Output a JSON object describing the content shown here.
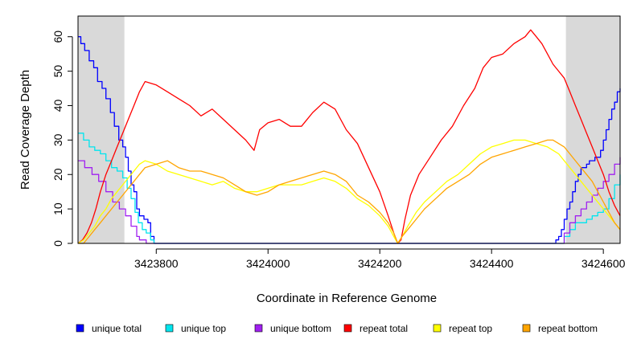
{
  "chart_data": {
    "type": "line",
    "xlabel": "Coordinate in Reference Genome",
    "ylabel": "Read Coverage Depth",
    "xlim": [
      3423660,
      3424630
    ],
    "ylim": [
      0,
      66
    ],
    "xticks": [
      3423800,
      3424000,
      3424200,
      3424400,
      3424600
    ],
    "xtick_labels": [
      "3423800",
      "3424000",
      "3424200",
      "3424400",
      "3424600"
    ],
    "yticks": [
      0,
      10,
      20,
      30,
      40,
      50,
      60
    ],
    "ytick_labels": [
      "0",
      "10",
      "20",
      "30",
      "40",
      "50",
      "60"
    ],
    "shaded_regions": [
      [
        3423660,
        3423743
      ],
      [
        3424533,
        3424630
      ]
    ],
    "shade_color": "#d9d9d9",
    "grid": false,
    "legend_position": "bottom",
    "series": [
      {
        "name": "unique total",
        "color": "#0000ff",
        "step": true,
        "x": [
          3423660,
          3423665,
          3423672,
          3423680,
          3423688,
          3423695,
          3423703,
          3423710,
          3423718,
          3423725,
          3423733,
          3423740,
          3423745,
          3423750,
          3423755,
          3423760,
          3423765,
          3423770,
          3423778,
          3423785,
          3423790,
          3423796,
          3424510,
          3424515,
          3424520,
          3424525,
          3424530,
          3424535,
          3424540,
          3424545,
          3424550,
          3424555,
          3424560,
          3424565,
          3424570,
          3424575,
          3424580,
          3424585,
          3424590,
          3424595,
          3424600,
          3424605,
          3424610,
          3424615,
          3424620,
          3424625,
          3424630
        ],
        "y": [
          60,
          58,
          56,
          53,
          51,
          47,
          45,
          42,
          38,
          34,
          30,
          28,
          25,
          21,
          17,
          15,
          10,
          8,
          7,
          6,
          2,
          0,
          0,
          1,
          2,
          4,
          7,
          10,
          12,
          15,
          18,
          20,
          22,
          22,
          23,
          24,
          24,
          25,
          25,
          27,
          30,
          33,
          36,
          39,
          41,
          44,
          45
        ]
      },
      {
        "name": "unique top",
        "color": "#00e5ee",
        "step": true,
        "x": [
          3423660,
          3423670,
          3423680,
          3423690,
          3423700,
          3423710,
          3423720,
          3423730,
          3423740,
          3423748,
          3423755,
          3423762,
          3423768,
          3423775,
          3423782,
          3423790,
          3423796,
          3424520,
          3424530,
          3424540,
          3424550,
          3424560,
          3424570,
          3424580,
          3424590,
          3424600,
          3424610,
          3424620,
          3424630
        ],
        "y": [
          32,
          30,
          28,
          27,
          26,
          24,
          22,
          21,
          19,
          16,
          13,
          9,
          6,
          4,
          3,
          1,
          0,
          0,
          2,
          4,
          6,
          6,
          7,
          8,
          9,
          10,
          13,
          17,
          20
        ]
      },
      {
        "name": "unique bottom",
        "color": "#a020f0",
        "step": true,
        "x": [
          3423660,
          3423672,
          3423685,
          3423697,
          3423710,
          3423722,
          3423734,
          3423745,
          3423755,
          3423765,
          3423770,
          3423776,
          3423782,
          3424520,
          3424530,
          3424540,
          3424550,
          3424560,
          3424570,
          3424580,
          3424590,
          3424600,
          3424610,
          3424620,
          3424630
        ],
        "y": [
          24,
          22,
          20,
          18,
          15,
          12,
          10,
          8,
          5,
          2,
          1,
          1,
          0,
          0,
          3,
          6,
          8,
          10,
          12,
          14,
          16,
          18,
          20,
          23,
          25
        ]
      },
      {
        "name": "repeat total",
        "color": "#ff0000",
        "step": false,
        "x": [
          3423660,
          3423668,
          3423676,
          3423684,
          3423692,
          3423700,
          3423710,
          3423720,
          3423730,
          3423740,
          3423750,
          3423760,
          3423770,
          3423780,
          3423800,
          3423820,
          3423840,
          3423860,
          3423880,
          3423900,
          3423920,
          3423940,
          3423960,
          3423975,
          3423985,
          3424000,
          3424020,
          3424040,
          3424060,
          3424080,
          3424100,
          3424120,
          3424140,
          3424160,
          3424180,
          3424200,
          3424215,
          3424225,
          3424232,
          3424238,
          3424245,
          3424255,
          3424270,
          3424290,
          3424310,
          3424330,
          3424350,
          3424370,
          3424385,
          3424400,
          3424420,
          3424440,
          3424460,
          3424470,
          3424480,
          3424490,
          3424500,
          3424510,
          3424520,
          3424530,
          3424540,
          3424550,
          3424560,
          3424570,
          3424580,
          3424590,
          3424600,
          3424610,
          3424620,
          3424630
        ],
        "y": [
          0,
          1,
          3,
          6,
          10,
          15,
          20,
          24,
          28,
          32,
          36,
          40,
          44,
          47,
          46,
          44,
          42,
          40,
          37,
          39,
          36,
          33,
          30,
          27,
          33,
          35,
          36,
          34,
          34,
          38,
          41,
          39,
          33,
          29,
          22,
          15,
          8,
          3,
          0,
          1,
          7,
          14,
          20,
          25,
          30,
          34,
          40,
          45,
          51,
          54,
          55,
          58,
          60,
          62,
          60,
          58,
          55,
          52,
          50,
          48,
          44,
          40,
          36,
          32,
          28,
          24,
          20,
          15,
          11,
          8
        ]
      },
      {
        "name": "repeat top",
        "color": "#ffff00",
        "step": false,
        "x": [
          3423660,
          3423670,
          3423680,
          3423690,
          3423700,
          3423710,
          3423720,
          3423730,
          3423740,
          3423750,
          3423760,
          3423770,
          3423780,
          3423800,
          3423820,
          3423840,
          3423860,
          3423880,
          3423900,
          3423920,
          3423940,
          3423960,
          3423980,
          3424000,
          3424020,
          3424040,
          3424060,
          3424080,
          3424100,
          3424120,
          3424140,
          3424160,
          3424180,
          3424200,
          3424215,
          3424225,
          3424232,
          3424240,
          3424250,
          3424265,
          3424280,
          3424300,
          3424320,
          3424340,
          3424360,
          3424380,
          3424400,
          3424420,
          3424440,
          3424460,
          3424480,
          3424500,
          3424510,
          3424520,
          3424530,
          3424540,
          3424550,
          3424560,
          3424570,
          3424580,
          3424590,
          3424600,
          3424610,
          3424620,
          3424630
        ],
        "y": [
          0,
          1,
          3,
          5,
          8,
          10,
          13,
          15,
          17,
          19,
          21,
          23,
          24,
          23,
          21,
          20,
          19,
          18,
          17,
          18,
          16,
          15,
          15,
          16,
          17,
          17,
          17,
          18,
          19,
          18,
          16,
          13,
          11,
          8,
          5,
          2,
          0,
          2,
          5,
          9,
          12,
          15,
          18,
          20,
          23,
          26,
          28,
          29,
          30,
          30,
          29,
          28,
          27,
          26,
          24,
          22,
          20,
          18,
          16,
          14,
          12,
          10,
          8,
          6,
          4
        ]
      },
      {
        "name": "repeat bottom",
        "color": "#ffa500",
        "step": false,
        "x": [
          3423660,
          3423670,
          3423680,
          3423690,
          3423700,
          3423710,
          3423720,
          3423730,
          3423740,
          3423750,
          3423760,
          3423770,
          3423780,
          3423800,
          3423820,
          3423840,
          3423860,
          3423880,
          3423900,
          3423920,
          3423940,
          3423960,
          3423980,
          3424000,
          3424020,
          3424040,
          3424060,
          3424080,
          3424100,
          3424120,
          3424140,
          3424160,
          3424180,
          3424200,
          3424215,
          3424225,
          3424232,
          3424240,
          3424250,
          3424265,
          3424280,
          3424300,
          3424320,
          3424340,
          3424360,
          3424380,
          3424400,
          3424420,
          3424440,
          3424460,
          3424480,
          3424500,
          3424510,
          3424520,
          3424530,
          3424540,
          3424550,
          3424560,
          3424570,
          3424580,
          3424590,
          3424600,
          3424610,
          3424620,
          3424630
        ],
        "y": [
          0,
          0,
          2,
          4,
          6,
          8,
          10,
          12,
          14,
          16,
          18,
          20,
          22,
          23,
          24,
          22,
          21,
          21,
          20,
          19,
          17,
          15,
          14,
          15,
          17,
          18,
          19,
          20,
          21,
          20,
          18,
          14,
          12,
          9,
          6,
          3,
          0,
          2,
          4,
          7,
          10,
          13,
          16,
          18,
          20,
          23,
          25,
          26,
          27,
          28,
          29,
          30,
          30,
          29,
          28,
          26,
          24,
          22,
          20,
          18,
          15,
          12,
          9,
          6,
          4
        ]
      }
    ]
  }
}
